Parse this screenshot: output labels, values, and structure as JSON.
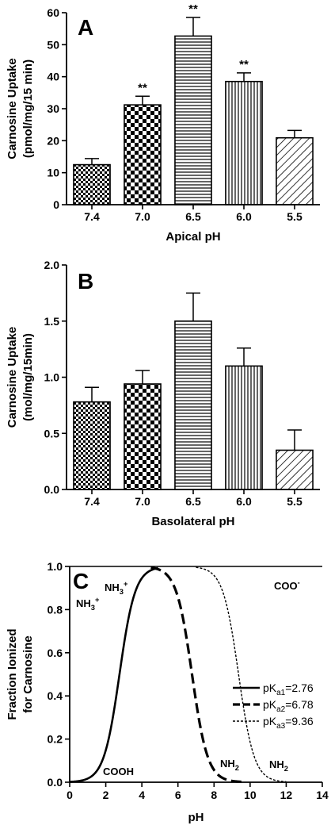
{
  "chart_data": [
    {
      "type": "bar",
      "panel_label": "A",
      "categories": [
        "7.4",
        "7.0",
        "6.5",
        "6.0",
        "5.5"
      ],
      "values": [
        12.5,
        31.2,
        52.7,
        38.5,
        20.9
      ],
      "errors": [
        1.9,
        2.7,
        5.8,
        2.7,
        2.3
      ],
      "significance": [
        "",
        "**",
        "**",
        "**",
        ""
      ],
      "patterns": [
        "checker-small",
        "checker-large",
        "horizontal",
        "vertical",
        "diagonal"
      ],
      "ylabel_line1": "Carnosine Uptake",
      "ylabel_line2": "(pmol/mg/15 min)",
      "xlabel": "Apical pH",
      "ylim": [
        0,
        60
      ],
      "yticks": [
        "0",
        "10",
        "20",
        "30",
        "40",
        "50",
        "60"
      ],
      "grid": false
    },
    {
      "type": "bar",
      "panel_label": "B",
      "categories": [
        "7.4",
        "7.0",
        "6.5",
        "6.0",
        "5.5"
      ],
      "values": [
        0.78,
        0.94,
        1.5,
        1.1,
        0.35
      ],
      "errors": [
        0.13,
        0.12,
        0.25,
        0.16,
        0.18
      ],
      "patterns": [
        "checker-small",
        "checker-large",
        "horizontal",
        "vertical",
        "diagonal"
      ],
      "ylabel_line1": "Carnosine Uptake",
      "ylabel_line2": "(mol/mg/15min)",
      "xlabel": "Basolateral pH",
      "ylim": [
        0,
        2.0
      ],
      "yticks": [
        "0.0",
        "0.5",
        "1.0",
        "1.5",
        "2.0"
      ],
      "grid": false
    },
    {
      "type": "line",
      "panel_label": "C",
      "ylabel_line1": "Fraction Ionized",
      "ylabel_line2": "for Carnosine",
      "xlabel": "pH",
      "xlim": [
        0,
        14
      ],
      "ylim": [
        0,
        1.0
      ],
      "xticks": [
        "0",
        "2",
        "4",
        "6",
        "8",
        "10",
        "12",
        "14"
      ],
      "yticks": [
        "0.0",
        "0.2",
        "0.4",
        "0.6",
        "0.8",
        "1.0"
      ],
      "reference_line_y": 1.0,
      "series": [
        {
          "base": "pK",
          "sub": "a1",
          "value_text": "=2.76",
          "pKa": 2.76,
          "direction": "rising",
          "x_from": 0,
          "x_to": 4.9,
          "style": "solid"
        },
        {
          "base": "pK",
          "sub": "a2",
          "value_text": "=6.78",
          "pKa": 6.78,
          "direction": "falling",
          "x_from": 4.5,
          "x_to": 9.6,
          "style": "long-dash"
        },
        {
          "base": "pK",
          "sub": "a3",
          "value_text": "=9.36",
          "pKa": 9.36,
          "direction": "falling",
          "x_from": 7.0,
          "x_to": 12.0,
          "style": "short-dash"
        }
      ],
      "annotations": {
        "nh3_top": {
          "base": "NH",
          "sub": "3",
          "sup": "+"
        },
        "nh3_left": {
          "base": "NH",
          "sub": "3",
          "sup": "+"
        },
        "coo": {
          "base": "COO",
          "sup": "-"
        },
        "cooh": {
          "base": "COOH"
        },
        "nh2_a": {
          "base": "NH",
          "sub": "2"
        },
        "nh2_b": {
          "base": "NH",
          "sub": "2"
        }
      },
      "legend_position": "right"
    }
  ]
}
